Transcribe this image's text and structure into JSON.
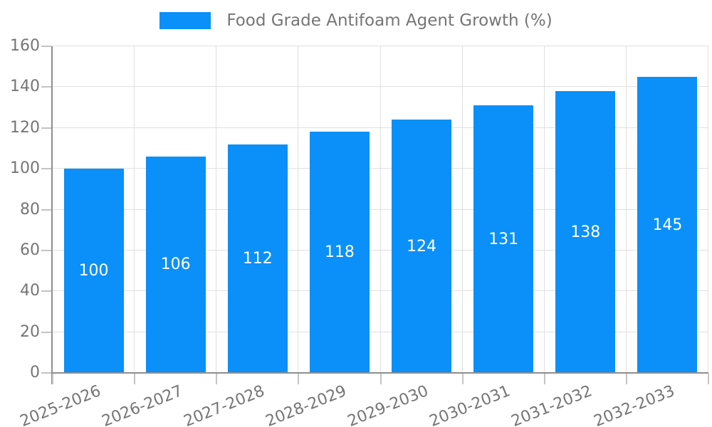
{
  "legend": {
    "label": "Food Grade Antifoam Agent Growth (%)"
  },
  "chart_data": {
    "type": "bar",
    "title": "Food Grade Antifoam Agent Growth (%)",
    "categories": [
      "2025-2026",
      "2026-2027",
      "2027-2028",
      "2028-2029",
      "2029-2030",
      "2030-2031",
      "2031-2032",
      "2032-2033"
    ],
    "series": [
      {
        "name": "Food Grade Antifoam Agent Growth (%)",
        "values": [
          100,
          106,
          112,
          118,
          124,
          131,
          138,
          145
        ]
      }
    ],
    "values": [
      100,
      106,
      112,
      118,
      124,
      131,
      138,
      145
    ],
    "bar_value_labels": [
      "100",
      "106",
      "112",
      "118",
      "124",
      "131",
      "138",
      "145"
    ],
    "xlabel": "",
    "ylabel": "",
    "ylim": [
      0,
      160
    ],
    "ytick_step": 20,
    "ytick_labels": [
      "0",
      "20",
      "40",
      "60",
      "80",
      "100",
      "120",
      "140",
      "160"
    ],
    "grid": true,
    "legend_position": "top",
    "xlabel_rotation_deg": -22,
    "colors": {
      "bar": "#0a90f8",
      "bar_label": "#ffffff",
      "axis_line": "#8e8e8e",
      "gridline": "#e0e0e0",
      "tick_mark": "#c4c4c4",
      "tick_label": "#757575",
      "legend_text": "#757575",
      "background": "#ffffff"
    }
  }
}
